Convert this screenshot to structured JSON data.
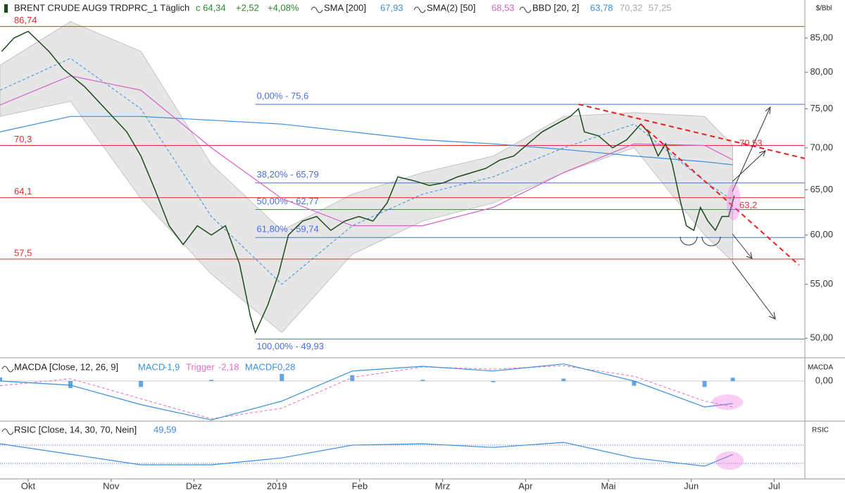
{
  "chart_data": {
    "type": "line",
    "title": "BRENT CRUDE AUG9 TRDPRC_1 Täglich",
    "header": {
      "close": {
        "value": 64.34,
        "label": "c 64,34"
      },
      "change": {
        "value": 2.52,
        "label": "+2,52"
      },
      "change_pct": {
        "value": 4.08,
        "label": "+4,08%"
      }
    },
    "y_unit": "$/Bbl",
    "log_scale": true,
    "xlim": [
      -0.34,
      9.37
    ],
    "xticks": [
      {
        "value": 0,
        "label": "Okt"
      },
      {
        "value": 1,
        "label": "Nov"
      },
      {
        "value": 2,
        "label": "Dez"
      },
      {
        "value": 3,
        "label": "2019"
      },
      {
        "value": 4,
        "label": "Feb"
      },
      {
        "value": 5,
        "label": "Mrz"
      },
      {
        "value": 6,
        "label": "Apr"
      },
      {
        "value": 7,
        "label": "Mai"
      },
      {
        "value": 8,
        "label": "Jun"
      },
      {
        "value": 9,
        "label": "Jul"
      }
    ],
    "ylim": [
      48.3,
      90.9
    ],
    "yticks": [
      {
        "value": 50,
        "label": "50,00"
      },
      {
        "value": 55,
        "label": "55,00"
      },
      {
        "value": 60,
        "label": "60,00"
      },
      {
        "value": 65,
        "label": "65,00"
      },
      {
        "value": 70,
        "label": "70,00"
      },
      {
        "value": 75,
        "label": "75,00"
      },
      {
        "value": 80,
        "label": "80,00"
      },
      {
        "value": 85,
        "label": "85,00"
      }
    ],
    "price": {
      "color": "#1a4a1a",
      "x": [
        -0.32,
        -0.17,
        0,
        0.25,
        0.42,
        0.68,
        0.93,
        1.19,
        1.36,
        1.53,
        1.7,
        1.87,
        2.04,
        2.21,
        2.38,
        2.55,
        2.68,
        2.74,
        2.89,
        3.02,
        3.14,
        3.31,
        3.48,
        3.65,
        3.82,
        3.99,
        4.16,
        4.33,
        4.46,
        4.67,
        4.84,
        5.01,
        5.18,
        5.35,
        5.52,
        5.69,
        5.86,
        6.03,
        6.2,
        6.37,
        6.54,
        6.64,
        6.71,
        6.88,
        7.05,
        7.22,
        7.39,
        7.48,
        7.6,
        7.69,
        7.77,
        7.86,
        7.94,
        8.03,
        8.11,
        8.2,
        8.29,
        8.37,
        8.45,
        8.52
      ],
      "values": [
        83,
        85,
        86,
        83,
        80.5,
        78,
        75,
        72,
        69,
        65,
        61,
        59,
        61,
        60,
        61,
        57,
        52,
        50.5,
        53,
        56,
        60,
        61.5,
        62,
        60.5,
        61.5,
        62,
        61.5,
        63.5,
        66.5,
        66,
        65.5,
        65.8,
        66.5,
        67,
        67.5,
        68.5,
        69,
        70.5,
        72,
        73,
        74,
        75,
        72,
        71.5,
        70,
        71,
        73,
        72,
        69,
        70.5,
        68,
        64,
        61,
        60.5,
        63,
        61.5,
        60.5,
        62,
        62,
        64.34
      ]
    },
    "indicators": {
      "x": [
        -0.34,
        0.51,
        1.36,
        2.21,
        3.06,
        3.91,
        4.76,
        5.61,
        6.46,
        7.31,
        8.16,
        8.5
      ],
      "sma": [
        {
          "name": "SMA [200]",
          "color": "#3a8fe0",
          "values": [
            72,
            74,
            74,
            73.5,
            73,
            72,
            71,
            70.5,
            69.8,
            69,
            68.3,
            67.93
          ],
          "last": {
            "value": 67.93,
            "label": "67,93"
          }
        },
        {
          "name": "SMA(2) [50]",
          "color": "#d660c8",
          "values": [
            75.5,
            79.5,
            77.5,
            70,
            64,
            61,
            61,
            63,
            67,
            70.5,
            70.3,
            68.53
          ],
          "last": {
            "value": 68.53,
            "label": "68,53"
          }
        }
      ],
      "bands": {
        "name": "BBD [20, 2]",
        "mid": {
          "color": "#3a8fe0",
          "values": [
            77.5,
            82,
            75,
            62,
            55,
            61,
            64.5,
            66.5,
            70,
            73,
            66,
            63.78
          ],
          "last": {
            "value": 63.78,
            "label": "63,78"
          }
        },
        "upper": {
          "values": [
            81,
            87.5,
            83,
            68,
            60.5,
            64.5,
            67,
            69,
            74,
            74.5,
            74,
            70.32
          ],
          "last": {
            "value": 70.32,
            "label": "70,32"
          }
        },
        "lower": {
          "values": [
            74,
            76,
            64,
            56,
            50.5,
            58,
            61.5,
            63.5,
            67,
            70,
            60,
            57.25
          ],
          "last": {
            "value": 57.25,
            "label": "57,25"
          }
        },
        "fill": "#e6e6e6"
      }
    },
    "levels": {
      "color": "#e03030",
      "items": [
        {
          "value": 86.74,
          "label": "86,74"
        },
        {
          "value": 70.3,
          "label": "70,3"
        },
        {
          "value": 64.1,
          "label": "64,1"
        },
        {
          "value": 57.5,
          "label": "57,5"
        }
      ]
    },
    "fibonacci": {
      "color": "#4a6fe0",
      "x_start": 2.74,
      "items": [
        {
          "value": 75.6,
          "label": "0,00% - 75,6"
        },
        {
          "value": 65.79,
          "label": "38,20% - 65,79"
        },
        {
          "value": 62.77,
          "label": "50,00% - 62,77"
        },
        {
          "value": 59.74,
          "label": "61,80% - 59,74"
        },
        {
          "value": 49.93,
          "label": "100,00% - 49,93"
        }
      ]
    },
    "trendlines": {
      "color": "#e82020",
      "items": [
        {
          "x": [
            6.64,
            9.37
          ],
          "values": [
            75.6,
            68.7
          ]
        },
        {
          "x": [
            7.39,
            9.3
          ],
          "values": [
            73,
            56.9
          ]
        }
      ]
    },
    "annotations": [
      {
        "x": 8.58,
        "value": 70.53,
        "label": "70,53"
      },
      {
        "x": 8.58,
        "value": 63.2,
        "label": "63,2"
      }
    ],
    "macd": {
      "title": "MACDA [Close, 12, 26, 9]",
      "axis_label": "MACDA",
      "ylim": [
        -3.4,
        1.85
      ],
      "yticks": [
        {
          "value": 0,
          "label": "0,00"
        }
      ],
      "series": [
        {
          "name": "MACD",
          "color": "#3a8fe0",
          "values": [
            0,
            -0.35,
            -2,
            -3.3,
            -1.7,
            0.85,
            1.25,
            0.85,
            1.45,
            0,
            -2.2,
            -1.9
          ],
          "last": {
            "value": -1.9,
            "label": "-1,9"
          }
        },
        {
          "name": "Trigger",
          "color": "#e070c8",
          "values": [
            -0.4,
            0.2,
            -1.5,
            -3.2,
            -2.3,
            0.3,
            1.2,
            1,
            1.3,
            0.4,
            -1.7,
            -2.18
          ],
          "last": {
            "value": -2.18,
            "label": "-2,18"
          }
        },
        {
          "name": "MACDF",
          "color": "#3a8fe0",
          "values": [
            0.3,
            -0.6,
            -0.5,
            0.1,
            0.6,
            0.5,
            0.1,
            -0.1,
            0.2,
            -0.4,
            -0.5,
            0.28
          ],
          "last": {
            "value": 0.28,
            "label": "0,28"
          }
        }
      ]
    },
    "rsi": {
      "title": "RSIC [Close, 14, 30, 70, Nein]",
      "axis_label": "RSIC",
      "ylim": [
        -3.8,
        117.7
      ],
      "levels": [
        70,
        30
      ],
      "color": "#3a8fe0",
      "values": [
        73,
        50,
        27,
        27,
        42,
        70,
        73,
        65,
        76,
        42,
        24,
        49.59
      ],
      "last": {
        "value": 49.59,
        "label": "49,59"
      }
    }
  }
}
